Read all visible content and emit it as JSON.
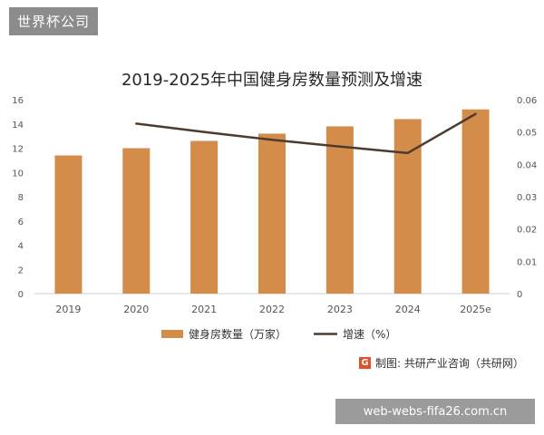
{
  "badge": "世界杯公司",
  "source_text": "制图: 共研产业咨询（共研网）",
  "watermark_url": "web-webs-fifa26.com.cn",
  "colors": {
    "bar": "#d48c4b",
    "line": "#4e3a2e",
    "axis_text": "#555555"
  },
  "chart_data": {
    "type": "bar",
    "title": "2019-2025年中国健身房数量预测及增速",
    "categories": [
      "2019",
      "2020",
      "2021",
      "2022",
      "2023",
      "2024",
      "2025e"
    ],
    "series": [
      {
        "name": "健身房数量（万家）",
        "type": "bar",
        "axis": "left",
        "values": [
          11.4,
          12.0,
          12.6,
          13.2,
          13.8,
          14.4,
          15.2
        ]
      },
      {
        "name": "增速（%）",
        "type": "line",
        "axis": "right",
        "values": [
          null,
          0.0526,
          0.05,
          0.0476,
          0.0455,
          0.0435,
          0.0556
        ]
      }
    ],
    "y_left": {
      "min": 0,
      "max": 16,
      "ticks": [
        "0",
        "2",
        "4",
        "6",
        "8",
        "10",
        "12",
        "14",
        "16"
      ]
    },
    "y_right": {
      "min": 0,
      "max": 0.06,
      "ticks": [
        "0",
        "0.01",
        "0.02",
        "0.03",
        "0.04",
        "0.05",
        "0.06"
      ]
    },
    "legend_position": "bottom",
    "grid": false
  }
}
